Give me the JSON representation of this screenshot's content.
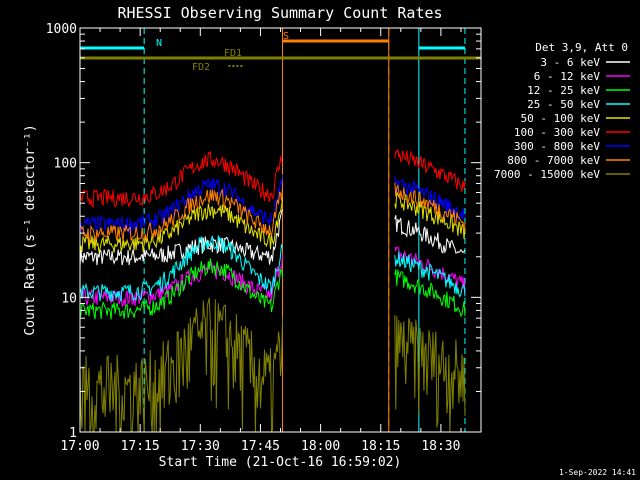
{
  "chart_data": {
    "type": "line",
    "title": "RHESSI Observing Summary Count Rates",
    "xlabel": "Start Time (21-Oct-16 16:59:02)",
    "ylabel": "Count Rate (s⁻¹ detector⁻¹)",
    "yscale": "log",
    "ylim": [
      1,
      1000
    ],
    "xlim_minutes": [
      0,
      100
    ],
    "x_tick_labels": [
      "17:00",
      "17:15",
      "17:30",
      "17:45",
      "18:00",
      "18:15",
      "18:30"
    ],
    "x_tick_minutes": [
      0,
      15,
      30,
      45,
      60,
      75,
      90
    ],
    "y_tick_labels": [
      "1",
      "10",
      "100",
      "1000"
    ],
    "y_tick_values": [
      1,
      10,
      100,
      1000
    ],
    "legend_title": "Det 3,9, Att 0",
    "legend_position": "right",
    "flags": [
      {
        "label": "N",
        "color": "#00ffff",
        "segments": [
          [
            0,
            16
          ],
          [
            84.5,
            96
          ]
        ]
      },
      {
        "label": "S",
        "color": "#ff8000",
        "segments": [
          [
            50.5,
            77
          ]
        ]
      },
      {
        "label": "FD1",
        "color": "#808000",
        "segments": [
          [
            0,
            100
          ]
        ]
      },
      {
        "label": "FD2",
        "color": "#808000",
        "segments": [
          [
            37,
            41
          ]
        ]
      }
    ],
    "data_gaps_minutes": [
      [
        50.5,
        77
      ]
    ],
    "series": [
      {
        "name": "3 - 6 keV",
        "color": "#ffffff",
        "base": 20,
        "peak": 25,
        "post": 20
      },
      {
        "name": "6 - 12 keV",
        "color": "#ff00ff",
        "base": 10,
        "peak": 16,
        "post": 12
      },
      {
        "name": "12 - 25 keV",
        "color": "#00ff00",
        "base": 8,
        "peak": 17,
        "post": 8
      },
      {
        "name": "25 - 50 keV",
        "color": "#00ffff",
        "base": 11,
        "peak": 26,
        "post": 11
      },
      {
        "name": "50 - 100 keV",
        "color": "#e0e000",
        "base": 25,
        "peak": 45,
        "post": 30
      },
      {
        "name": "100 - 300 keV",
        "color": "#ff0000",
        "base": 55,
        "peak": 105,
        "post": 65
      },
      {
        "name": "300 - 800 keV",
        "color": "#0000ff",
        "base": 35,
        "peak": 68,
        "post": 40
      },
      {
        "name": "800 - 7000 keV",
        "color": "#ff8000",
        "base": 30,
        "peak": 57,
        "post": 35
      },
      {
        "name": "7000 - 15000 keV",
        "color": "#808000",
        "base": 1.5,
        "peak": 4,
        "post": 2
      }
    ],
    "footer": "1-Sep-2022 14:41"
  }
}
